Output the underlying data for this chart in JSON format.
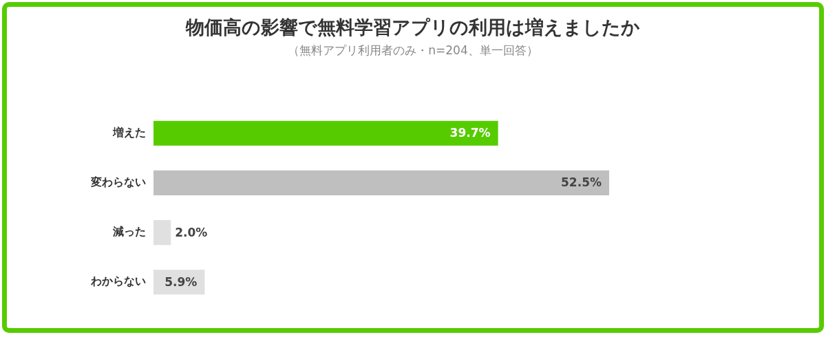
{
  "chart_data": {
    "type": "bar",
    "orientation": "horizontal",
    "title": "物価高の影響で無料学習アプリの利用は増えましたか",
    "subtitle": "（無料アプリ利用者のみ・n=204、単一回答）",
    "categories": [
      "増えた",
      "変わらない",
      "減った",
      "わからない"
    ],
    "values": [
      39.7,
      52.5,
      2.0,
      5.9
    ],
    "colors": [
      "#56cc00",
      "#bfbfbf",
      "#e0e0e0",
      "#e0e0e0"
    ],
    "value_labels": [
      "39.7%",
      "52.5%",
      "2.0%",
      "5.9%"
    ]
  }
}
